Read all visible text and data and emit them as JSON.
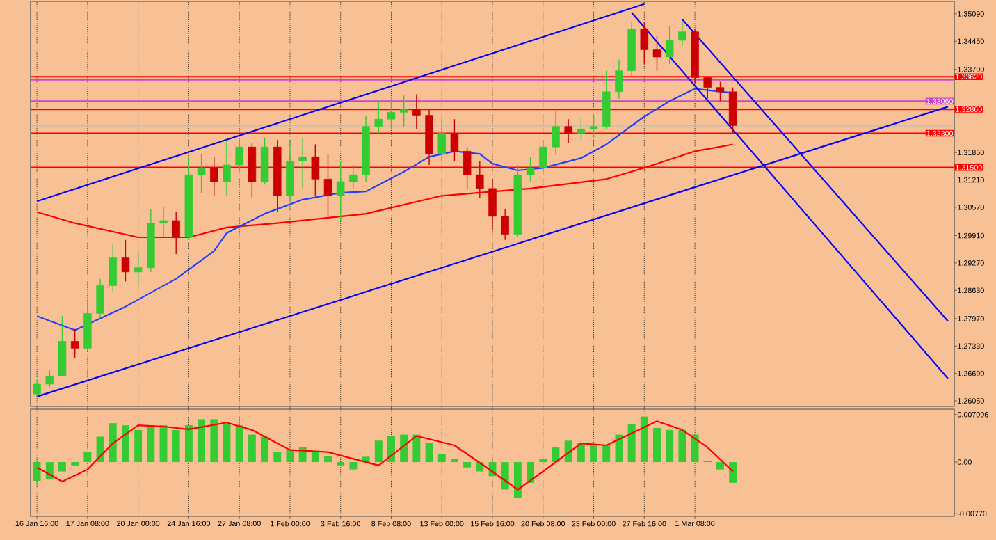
{
  "chart_data": [
    {
      "type": "candlestick",
      "categories": [
        null,
        null,
        null,
        null,
        null,
        null,
        null,
        null,
        null,
        null,
        null,
        null,
        null,
        null,
        null,
        null,
        null,
        null,
        null,
        null,
        null,
        null,
        null,
        null,
        null,
        null,
        null,
        null,
        null,
        null,
        null,
        null,
        null,
        null,
        null,
        null,
        null,
        null,
        null,
        null,
        null,
        null,
        null,
        null,
        null,
        null,
        null,
        null,
        null,
        null,
        null,
        null,
        null,
        null,
        null,
        null,
        null,
        null,
        null,
        null,
        null,
        null,
        null,
        null,
        null,
        null,
        null,
        null,
        null,
        null,
        null,
        null,
        null
      ],
      "ohlc": [
        [
          1.2621,
          1.2657,
          1.2615,
          1.2644
        ],
        [
          1.2644,
          1.2676,
          1.2637,
          1.2663
        ],
        [
          1.2663,
          1.2803,
          1.2663,
          1.2744
        ],
        [
          1.2744,
          1.2773,
          1.2705,
          1.2728
        ],
        [
          1.2728,
          1.2841,
          1.2722,
          1.2809
        ],
        [
          1.2809,
          1.289,
          1.2799,
          1.2874
        ],
        [
          1.2874,
          1.2971,
          1.2858,
          1.2939
        ],
        [
          1.2939,
          1.2981,
          1.2884,
          1.2906
        ],
        [
          1.2906,
          1.2955,
          1.2874,
          1.2916
        ],
        [
          1.2916,
          1.3052,
          1.2906,
          1.302
        ],
        [
          1.302,
          1.3058,
          1.2987,
          1.3026
        ],
        [
          1.3026,
          1.3046,
          1.2948,
          1.2987
        ],
        [
          1.2987,
          1.3175,
          1.2981,
          1.3133
        ],
        [
          1.3133,
          1.3182,
          1.3091,
          1.3149
        ],
        [
          1.3149,
          1.3175,
          1.3084,
          1.3117
        ],
        [
          1.3117,
          1.3214,
          1.3084,
          1.3156
        ],
        [
          1.3156,
          1.322,
          1.3143,
          1.3198
        ],
        [
          1.3198,
          1.3208,
          1.3078,
          1.3117
        ],
        [
          1.3117,
          1.322,
          1.311,
          1.3198
        ],
        [
          1.3198,
          1.3214,
          1.3046,
          1.3084
        ],
        [
          1.3084,
          1.3214,
          1.3068,
          1.3165
        ],
        [
          1.3165,
          1.322,
          1.3101,
          1.3175
        ],
        [
          1.3175,
          1.3204,
          1.3084,
          1.3123
        ],
        [
          1.3123,
          1.3182,
          1.3036,
          1.3084
        ],
        [
          1.3084,
          1.3165,
          1.3026,
          1.3117
        ],
        [
          1.3117,
          1.3156,
          1.3101,
          1.3133
        ],
        [
          1.3133,
          1.3272,
          1.3117,
          1.3246
        ],
        [
          1.3246,
          1.3305,
          1.323,
          1.3263
        ],
        [
          1.3263,
          1.3311,
          1.324,
          1.3279
        ],
        [
          1.3279,
          1.3318,
          1.3246,
          1.3285
        ],
        [
          1.3285,
          1.3321,
          1.324,
          1.3272
        ],
        [
          1.3272,
          1.3285,
          1.3156,
          1.3182
        ],
        [
          1.3182,
          1.3263,
          1.3165,
          1.323
        ],
        [
          1.323,
          1.3263,
          1.3165,
          1.3188
        ],
        [
          1.3188,
          1.3198,
          1.3101,
          1.3133
        ],
        [
          1.3133,
          1.3165,
          1.3078,
          1.3101
        ],
        [
          1.3101,
          1.3123,
          1.3003,
          1.3036
        ],
        [
          1.3036,
          1.3052,
          1.2981,
          1.2994
        ],
        [
          1.2994,
          1.3156,
          1.2987,
          1.3133
        ],
        [
          1.3133,
          1.3175,
          1.3117,
          1.3149
        ],
        [
          1.3149,
          1.3214,
          1.3133,
          1.3198
        ],
        [
          1.3198,
          1.3285,
          1.3182,
          1.3246
        ],
        [
          1.3246,
          1.3263,
          1.3208,
          1.323
        ],
        [
          1.323,
          1.3266,
          1.3214,
          1.324
        ],
        [
          1.324,
          1.3272,
          1.322,
          1.3246
        ],
        [
          1.3246,
          1.3376,
          1.324,
          1.3327
        ],
        [
          1.3327,
          1.3402,
          1.3311,
          1.3376
        ],
        [
          1.3376,
          1.3489,
          1.336,
          1.3473
        ],
        [
          1.3473,
          1.3489,
          1.3392,
          1.3425
        ],
        [
          1.3425,
          1.3457,
          1.3376,
          1.3408
        ],
        [
          1.3408,
          1.348,
          1.3392,
          1.3447
        ],
        [
          1.3447,
          1.3493,
          1.3434,
          1.3467
        ],
        [
          1.3467,
          1.3473,
          1.3344,
          1.336
        ],
        [
          1.336,
          1.336,
          1.3311,
          1.3337
        ],
        [
          1.3337,
          1.335,
          1.3305,
          1.3327
        ],
        [
          1.3327,
          1.3337,
          1.323,
          1.3248
        ],
        null,
        null,
        null,
        null,
        null,
        null,
        null,
        null,
        null,
        null,
        null,
        null,
        null,
        null,
        null,
        null,
        null
      ],
      "series": [
        {
          "type": "line",
          "color": "#ff0000",
          "values": [
            1.3046,
            null,
            null,
            1.302,
            null,
            null,
            null,
            null,
            1.2987,
            null,
            null,
            null,
            1.2987,
            null,
            null,
            1.301,
            null,
            null,
            null,
            1.302,
            null,
            null,
            null,
            null,
            null,
            null,
            1.3042,
            null,
            null,
            null,
            null,
            null,
            1.3084,
            null,
            null,
            null,
            null,
            null,
            null,
            1.3101,
            null,
            null,
            null,
            null,
            null,
            1.3123,
            null,
            null,
            1.3149,
            null,
            null,
            null,
            1.3188,
            null,
            null,
            1.3204,
            null,
            null,
            null,
            null,
            null,
            null,
            null,
            null,
            null,
            null,
            null,
            null,
            null,
            null,
            null,
            null,
            null
          ]
        },
        {
          "type": "line",
          "color": "#2040ff",
          "values": [
            1.2803,
            null,
            null,
            1.277,
            null,
            null,
            null,
            1.2825,
            null,
            null,
            null,
            1.289,
            null,
            null,
            1.2955,
            1.2997,
            null,
            null,
            1.3042,
            null,
            null,
            1.3075,
            null,
            null,
            1.3091,
            null,
            1.3094,
            null,
            null,
            1.314,
            null,
            1.3175,
            null,
            1.3188,
            null,
            1.3182,
            1.3159,
            null,
            1.3143,
            null,
            1.3149,
            null,
            null,
            1.3172,
            null,
            1.3204,
            null,
            null,
            1.3269,
            null,
            1.3305,
            null,
            1.3334,
            null,
            null,
            1.3324,
            null,
            null,
            null,
            null,
            null,
            null,
            null,
            null,
            null,
            null,
            null,
            null,
            null,
            null,
            null,
            null,
            null
          ]
        },
        {
          "type": "line",
          "color": "#0000ff",
          "values": [
            1.3071,
            null,
            null,
            null,
            null,
            null,
            null,
            null,
            null,
            null,
            null,
            null,
            null,
            null,
            null,
            null,
            null,
            null,
            null,
            null,
            null,
            null,
            null,
            null,
            null,
            null,
            null,
            null,
            null,
            null,
            null,
            null,
            null,
            null,
            null,
            null,
            null,
            null,
            null,
            null,
            null,
            null,
            null,
            null,
            null,
            null,
            null,
            null,
            1.3532,
            null,
            null,
            null,
            null,
            null,
            null,
            null,
            null,
            null,
            null,
            null,
            null,
            null,
            null,
            null,
            null,
            null,
            null,
            null,
            null,
            null,
            null,
            null,
            null
          ]
        },
        {
          "type": "line",
          "color": "#0000ff",
          "values": [
            1.2615,
            null,
            null,
            null,
            null,
            null,
            null,
            null,
            null,
            null,
            null,
            null,
            null,
            null,
            null,
            null,
            null,
            null,
            null,
            null,
            null,
            null,
            null,
            null,
            null,
            null,
            null,
            null,
            null,
            null,
            null,
            null,
            null,
            null,
            null,
            null,
            null,
            null,
            null,
            null,
            null,
            null,
            null,
            null,
            null,
            null,
            null,
            null,
            null,
            null,
            null,
            null,
            null,
            null,
            null,
            null,
            null,
            null,
            null,
            null,
            null,
            null,
            null,
            null,
            null,
            null,
            null,
            null,
            null,
            null,
            null,
            null,
            1.3292
          ]
        },
        {
          "type": "line",
          "color": "#0000ff",
          "values": [
            null,
            null,
            null,
            null,
            null,
            null,
            null,
            null,
            null,
            null,
            null,
            null,
            null,
            null,
            null,
            null,
            null,
            null,
            null,
            null,
            null,
            null,
            null,
            null,
            null,
            null,
            null,
            null,
            null,
            null,
            null,
            null,
            null,
            null,
            null,
            null,
            null,
            null,
            null,
            null,
            null,
            null,
            null,
            null,
            null,
            null,
            null,
            1.3512,
            null,
            null,
            null,
            null,
            null,
            null,
            null,
            null,
            null,
            null,
            null,
            null,
            null,
            null,
            null,
            null,
            null,
            null,
            null,
            null,
            null,
            null,
            null,
            null,
            1.2657
          ]
        },
        {
          "type": "line",
          "color": "#0000ff",
          "values": [
            null,
            null,
            null,
            null,
            null,
            null,
            null,
            null,
            null,
            null,
            null,
            null,
            null,
            null,
            null,
            null,
            null,
            null,
            null,
            null,
            null,
            null,
            null,
            null,
            null,
            null,
            null,
            null,
            null,
            null,
            null,
            null,
            null,
            null,
            null,
            null,
            null,
            null,
            null,
            null,
            null,
            null,
            null,
            null,
            null,
            null,
            null,
            null,
            null,
            null,
            null,
            1.3496,
            null,
            null,
            null,
            null,
            null,
            null,
            null,
            null,
            null,
            null,
            null,
            null,
            null,
            null,
            null,
            null,
            null,
            null,
            null,
            null,
            1.2791
          ]
        }
      ],
      "ref_lines": [
        {
          "axis": "y",
          "value": 1.3362,
          "label": "1.33620",
          "color": "#ff0000"
        },
        {
          "axis": "y",
          "value": 1.3355,
          "color": "#cc44cc"
        },
        {
          "axis": "y",
          "value": 1.3305,
          "label": "1.33050",
          "color": "#cc44cc"
        },
        {
          "axis": "y",
          "value": 1.3286,
          "label": "1.32860",
          "color": "#ff0000"
        },
        {
          "axis": "y",
          "value": 1.3248,
          "color": "#c0c0c0"
        },
        {
          "axis": "y",
          "value": 1.323,
          "label": "1.32300",
          "color": "#ff0000"
        },
        {
          "axis": "y",
          "value": 1.315,
          "label": "1.31500",
          "color": "#ff0000"
        }
      ],
      "ylim": [
        1.2592,
        1.3538
      ],
      "yticks": [
        {
          "value": 1.3509,
          "label": "1.35090"
        },
        {
          "value": 1.3445,
          "label": "1.34450"
        },
        {
          "value": 1.3379,
          "label": "1.33790"
        },
        {
          "value": 1.3185,
          "label": "1.31850"
        },
        {
          "value": 1.3121,
          "label": "1.31210"
        },
        {
          "value": 1.3057,
          "label": "1.30570"
        },
        {
          "value": 1.2991,
          "label": "1.29910"
        },
        {
          "value": 1.2927,
          "label": "1.29270"
        },
        {
          "value": 1.2863,
          "label": "1.28630"
        },
        {
          "value": 1.2797,
          "label": "1.27970"
        },
        {
          "value": 1.2733,
          "label": "1.27330"
        },
        {
          "value": 1.2669,
          "label": "1.26690"
        },
        {
          "value": 1.2605,
          "label": "1.26050"
        }
      ],
      "grid": "x",
      "tick_labels": "y"
    },
    {
      "type": "bar",
      "categories": [
        "16 Jan 16:00",
        null,
        null,
        null,
        "17 Jan 08:00",
        null,
        null,
        null,
        "20 Jan 00:00",
        null,
        null,
        null,
        "24 Jan 16:00",
        null,
        null,
        null,
        "27 Jan 08:00",
        null,
        null,
        null,
        "1 Feb 00:00",
        null,
        null,
        null,
        "3 Feb 16:00",
        null,
        null,
        null,
        "8 Feb 08:00",
        null,
        null,
        null,
        "13 Feb 00:00",
        null,
        null,
        null,
        "15 Feb 16:00",
        null,
        null,
        null,
        "20 Feb 08:00",
        null,
        null,
        null,
        "23 Feb 00:00",
        null,
        null,
        null,
        "27 Feb 16:00",
        null,
        null,
        null,
        "1 Mar 08:00",
        null,
        null,
        null,
        null,
        null,
        null,
        null,
        null,
        null,
        null,
        null,
        null,
        null,
        null,
        null,
        null,
        null,
        null,
        null,
        null
      ],
      "series": [
        {
          "color": "#33cc33",
          "values": [
            -0.0028,
            -0.0026,
            -0.0014,
            -0.0005,
            0.0015,
            0.0038,
            0.0058,
            0.0055,
            0.0048,
            0.0055,
            0.0055,
            0.0048,
            0.0055,
            0.0064,
            0.0064,
            0.0057,
            0.0055,
            0.0041,
            0.0038,
            0.0015,
            0.0018,
            0.0022,
            0.0015,
            0.0009,
            -0.0005,
            -0.0011,
            0.0008,
            0.0032,
            0.0039,
            0.0041,
            0.0041,
            0.0028,
            0.0012,
            0.0005,
            -0.0008,
            -0.0014,
            -0.0021,
            -0.0041,
            -0.0054,
            -0.0031,
            0.0005,
            0.0022,
            0.0032,
            0.0028,
            0.0025,
            0.0025,
            0.0041,
            0.0057,
            0.0068,
            0.0051,
            0.0048,
            0.0048,
            0.0041,
            0.0002,
            -0.0011,
            -0.0031,
            null,
            null,
            null,
            null,
            null,
            null,
            null,
            null,
            null,
            null,
            null,
            null,
            null,
            null,
            null,
            null,
            null
          ]
        },
        {
          "type": "line",
          "color": "#ff0000",
          "values": [
            -0.0008,
            null,
            -0.0029,
            null,
            -0.0011,
            null,
            0.0028,
            null,
            0.0055,
            null,
            0.0053,
            null,
            0.0049,
            null,
            null,
            0.0059,
            null,
            0.0048,
            null,
            null,
            0.0018,
            null,
            null,
            0.0015,
            null,
            null,
            null,
            -0.0005,
            null,
            null,
            0.0039,
            null,
            null,
            0.0025,
            null,
            -0.0001,
            null,
            null,
            -0.0041,
            null,
            -0.0014,
            null,
            null,
            0.0028,
            null,
            0.0025,
            null,
            null,
            null,
            0.0061,
            null,
            0.0048,
            null,
            0.0022,
            null,
            -0.0014,
            null,
            null,
            null,
            null,
            null,
            null,
            null,
            null,
            null,
            null,
            null,
            null,
            null,
            null,
            null,
            null,
            null
          ]
        }
      ],
      "ylim": [
        -0.0081,
        0.0079
      ],
      "yticks": [
        {
          "value": 0.007096,
          "label": "0.007096"
        },
        {
          "value": 0,
          "label": "0.00"
        },
        {
          "value": -0.0077,
          "label": "-0.00770"
        }
      ],
      "grid": "x"
    }
  ]
}
